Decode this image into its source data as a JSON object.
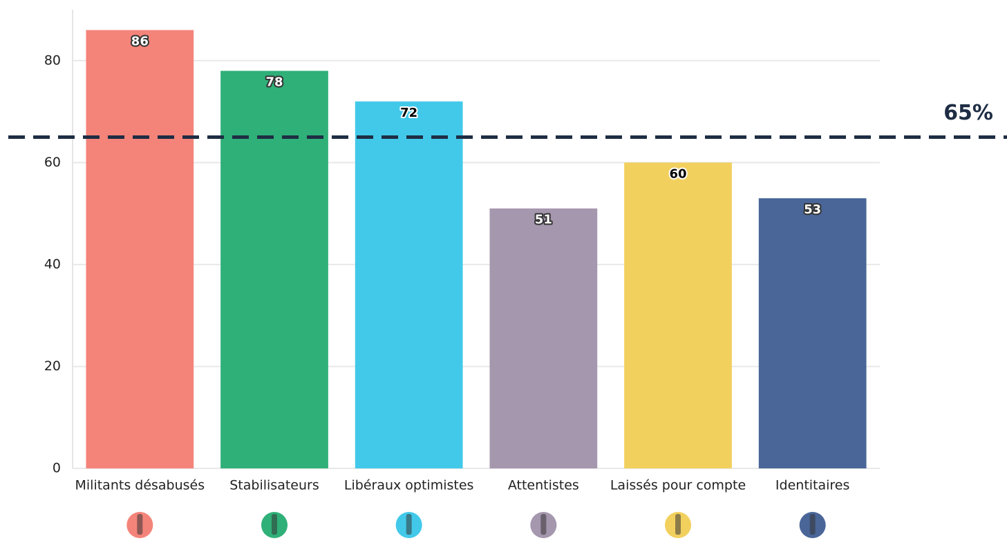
{
  "chart_data": {
    "type": "bar",
    "categories": [
      "Militants désabusés",
      "Stabilisateurs",
      "Libéraux optimistes",
      "Attentistes",
      "Laissés pour compte",
      "Identitaires"
    ],
    "values": [
      86,
      78,
      72,
      51,
      60,
      53
    ],
    "colors": [
      "#f4847a",
      "#2fb078",
      "#42c9ea",
      "#a597ae",
      "#f2d05e",
      "#4a6699"
    ],
    "value_label_colors": [
      "#ffffff",
      "#ffffff",
      "#000000",
      "#ffffff",
      "#000000",
      "#ffffff"
    ],
    "ylim": [
      0,
      90
    ],
    "yticks": [
      0,
      20,
      40,
      60,
      80
    ],
    "grid": true,
    "reference_line": {
      "value": 65,
      "label": "65%"
    }
  }
}
